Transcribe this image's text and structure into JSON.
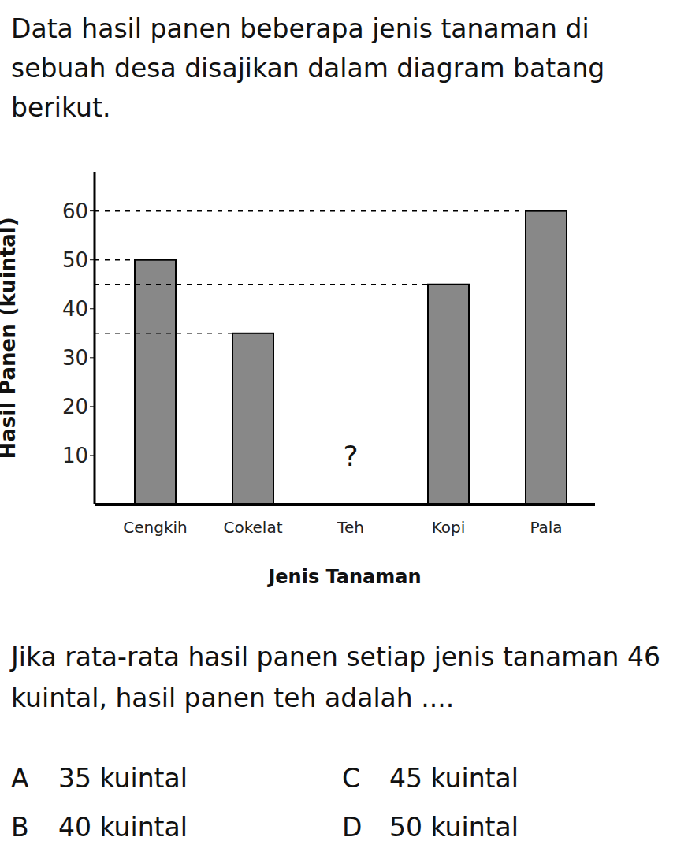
{
  "intro": "Data hasil panen beberapa jenis tanaman di sebuah desa disajikan dalam diagram batang berikut.",
  "chart_data": {
    "type": "bar",
    "categories": [
      "Cengkih",
      "Cokelat",
      "Teh",
      "Kopi",
      "Pala"
    ],
    "values": [
      50,
      35,
      null,
      45,
      60
    ],
    "x_label": "Jenis Tanaman",
    "y_label": "Hasil Panen (kuintal)",
    "ylim": [
      0,
      68
    ],
    "yticks": [
      10,
      20,
      30,
      40,
      50,
      60
    ],
    "color": "#888888",
    "annotations": [
      "?"
    ]
  },
  "question": "Jika rata-rata hasil panen setiap jenis tanaman 46 kuintal, hasil panen teh adalah ....",
  "options": [
    {
      "letter": "A",
      "text": "35 kuintal"
    },
    {
      "letter": "B",
      "text": "40 kuintal"
    },
    {
      "letter": "C",
      "text": "45 kuintal"
    },
    {
      "letter": "D",
      "text": "50 kuintal"
    }
  ]
}
